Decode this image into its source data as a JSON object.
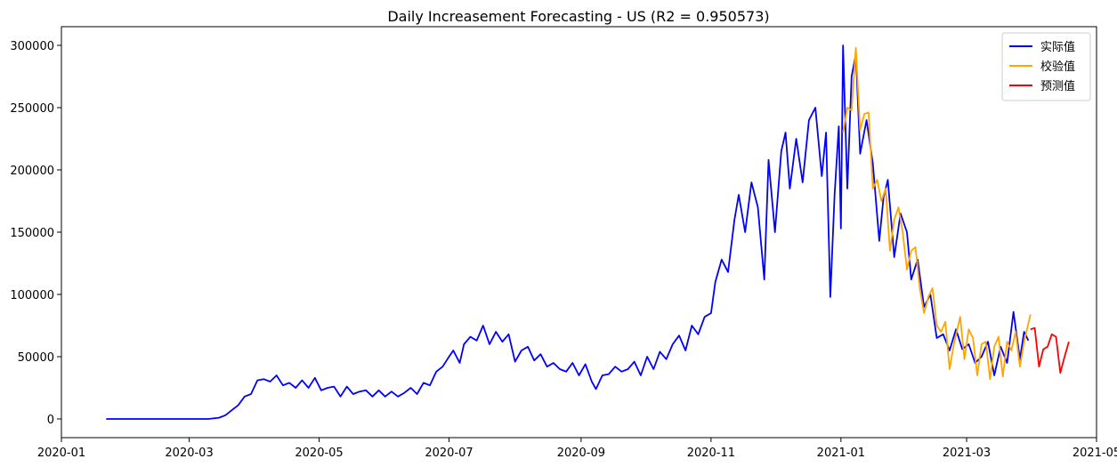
{
  "chart_data": {
    "type": "line",
    "title": "Daily Increasement Forecasting - US (R2 = 0.950573)",
    "xlabel": "",
    "ylabel": "",
    "xlim": [
      "2020-01-01",
      "2021-05-01"
    ],
    "ylim": [
      -15000,
      315000
    ],
    "grid": false,
    "legend_position": "top-right",
    "x_ticks": [
      "2020-01",
      "2020-03",
      "2020-05",
      "2020-07",
      "2020-09",
      "2020-11",
      "2021-01",
      "2021-03",
      "2021-05"
    ],
    "y_ticks": [
      0,
      50000,
      100000,
      150000,
      200000,
      250000,
      300000
    ],
    "series": [
      {
        "name": "实际值",
        "color": "#0000ff",
        "points": [
          [
            "2020-01-22",
            0
          ],
          [
            "2020-02-01",
            0
          ],
          [
            "2020-02-15",
            0
          ],
          [
            "2020-03-01",
            0
          ],
          [
            "2020-03-10",
            0
          ],
          [
            "2020-03-15",
            1000
          ],
          [
            "2020-03-18",
            3000
          ],
          [
            "2020-03-21",
            7000
          ],
          [
            "2020-03-24",
            11000
          ],
          [
            "2020-03-27",
            18000
          ],
          [
            "2020-03-30",
            20000
          ],
          [
            "2020-04-02",
            31000
          ],
          [
            "2020-04-05",
            32000
          ],
          [
            "2020-04-08",
            30000
          ],
          [
            "2020-04-11",
            35000
          ],
          [
            "2020-04-14",
            27000
          ],
          [
            "2020-04-17",
            29000
          ],
          [
            "2020-04-20",
            25000
          ],
          [
            "2020-04-23",
            31000
          ],
          [
            "2020-04-26",
            25000
          ],
          [
            "2020-04-29",
            33000
          ],
          [
            "2020-05-02",
            23000
          ],
          [
            "2020-05-05",
            25000
          ],
          [
            "2020-05-08",
            26000
          ],
          [
            "2020-05-11",
            18000
          ],
          [
            "2020-05-14",
            26000
          ],
          [
            "2020-05-17",
            20000
          ],
          [
            "2020-05-20",
            22000
          ],
          [
            "2020-05-23",
            23000
          ],
          [
            "2020-05-26",
            18000
          ],
          [
            "2020-05-29",
            23000
          ],
          [
            "2020-06-01",
            18000
          ],
          [
            "2020-06-04",
            22000
          ],
          [
            "2020-06-07",
            18000
          ],
          [
            "2020-06-10",
            21000
          ],
          [
            "2020-06-13",
            25000
          ],
          [
            "2020-06-16",
            20000
          ],
          [
            "2020-06-19",
            29000
          ],
          [
            "2020-06-22",
            27000
          ],
          [
            "2020-06-25",
            38000
          ],
          [
            "2020-06-28",
            42000
          ],
          [
            "2020-07-01",
            50000
          ],
          [
            "2020-07-03",
            55000
          ],
          [
            "2020-07-06",
            45000
          ],
          [
            "2020-07-08",
            60000
          ],
          [
            "2020-07-11",
            66000
          ],
          [
            "2020-07-14",
            63000
          ],
          [
            "2020-07-17",
            75000
          ],
          [
            "2020-07-20",
            60000
          ],
          [
            "2020-07-23",
            70000
          ],
          [
            "2020-07-26",
            62000
          ],
          [
            "2020-07-29",
            68000
          ],
          [
            "2020-08-01",
            46000
          ],
          [
            "2020-08-04",
            55000
          ],
          [
            "2020-08-07",
            58000
          ],
          [
            "2020-08-10",
            47000
          ],
          [
            "2020-08-13",
            52000
          ],
          [
            "2020-08-16",
            42000
          ],
          [
            "2020-08-19",
            45000
          ],
          [
            "2020-08-22",
            40000
          ],
          [
            "2020-08-25",
            38000
          ],
          [
            "2020-08-28",
            45000
          ],
          [
            "2020-08-31",
            35000
          ],
          [
            "2020-09-03",
            44000
          ],
          [
            "2020-09-06",
            30000
          ],
          [
            "2020-09-08",
            24000
          ],
          [
            "2020-09-11",
            35000
          ],
          [
            "2020-09-14",
            36000
          ],
          [
            "2020-09-17",
            42000
          ],
          [
            "2020-09-20",
            38000
          ],
          [
            "2020-09-23",
            40000
          ],
          [
            "2020-09-26",
            46000
          ],
          [
            "2020-09-29",
            35000
          ],
          [
            "2020-10-02",
            50000
          ],
          [
            "2020-10-05",
            40000
          ],
          [
            "2020-10-08",
            54000
          ],
          [
            "2020-10-11",
            48000
          ],
          [
            "2020-10-14",
            60000
          ],
          [
            "2020-10-17",
            67000
          ],
          [
            "2020-10-20",
            55000
          ],
          [
            "2020-10-23",
            75000
          ],
          [
            "2020-10-26",
            68000
          ],
          [
            "2020-10-29",
            82000
          ],
          [
            "2020-11-01",
            85000
          ],
          [
            "2020-11-03",
            110000
          ],
          [
            "2020-11-06",
            128000
          ],
          [
            "2020-11-09",
            118000
          ],
          [
            "2020-11-12",
            160000
          ],
          [
            "2020-11-14",
            180000
          ],
          [
            "2020-11-17",
            150000
          ],
          [
            "2020-11-20",
            190000
          ],
          [
            "2020-11-23",
            170000
          ],
          [
            "2020-11-26",
            112000
          ],
          [
            "2020-11-28",
            208000
          ],
          [
            "2020-12-01",
            150000
          ],
          [
            "2020-12-04",
            215000
          ],
          [
            "2020-12-06",
            230000
          ],
          [
            "2020-12-08",
            185000
          ],
          [
            "2020-12-11",
            225000
          ],
          [
            "2020-12-14",
            190000
          ],
          [
            "2020-12-17",
            240000
          ],
          [
            "2020-12-20",
            250000
          ],
          [
            "2020-12-23",
            195000
          ],
          [
            "2020-12-25",
            230000
          ],
          [
            "2020-12-27",
            98000
          ],
          [
            "2020-12-29",
            180000
          ],
          [
            "2020-12-31",
            235000
          ],
          [
            "2021-01-01",
            153000
          ],
          [
            "2021-01-02",
            300000
          ],
          [
            "2021-01-04",
            185000
          ],
          [
            "2021-01-06",
            275000
          ],
          [
            "2021-01-08",
            293000
          ],
          [
            "2021-01-10",
            213000
          ],
          [
            "2021-01-13",
            240000
          ],
          [
            "2021-01-16",
            205000
          ],
          [
            "2021-01-19",
            143000
          ],
          [
            "2021-01-21",
            178000
          ],
          [
            "2021-01-23",
            192000
          ],
          [
            "2021-01-26",
            130000
          ],
          [
            "2021-01-29",
            165000
          ],
          [
            "2021-02-01",
            150000
          ],
          [
            "2021-02-03",
            112000
          ],
          [
            "2021-02-06",
            128000
          ],
          [
            "2021-02-09",
            90000
          ],
          [
            "2021-02-12",
            100000
          ],
          [
            "2021-02-15",
            65000
          ],
          [
            "2021-02-18",
            68000
          ],
          [
            "2021-02-21",
            55000
          ],
          [
            "2021-02-24",
            72000
          ],
          [
            "2021-02-27",
            56000
          ],
          [
            "2021-03-02",
            60000
          ],
          [
            "2021-03-05",
            45000
          ],
          [
            "2021-03-08",
            50000
          ],
          [
            "2021-03-11",
            62000
          ],
          [
            "2021-03-14",
            35000
          ],
          [
            "2021-03-17",
            58000
          ],
          [
            "2021-03-20",
            45000
          ],
          [
            "2021-03-23",
            86000
          ],
          [
            "2021-03-26",
            48000
          ],
          [
            "2021-03-28",
            70000
          ],
          [
            "2021-03-30",
            63000
          ]
        ]
      },
      {
        "name": "校验值",
        "color": "#ffa500",
        "points": [
          [
            "2021-01-02",
            230000
          ],
          [
            "2021-01-04",
            250000
          ],
          [
            "2021-01-06",
            248000
          ],
          [
            "2021-01-08",
            298000
          ],
          [
            "2021-01-10",
            232000
          ],
          [
            "2021-01-12",
            245000
          ],
          [
            "2021-01-14",
            246000
          ],
          [
            "2021-01-16",
            185000
          ],
          [
            "2021-01-18",
            192000
          ],
          [
            "2021-01-20",
            175000
          ],
          [
            "2021-01-22",
            185000
          ],
          [
            "2021-01-24",
            135000
          ],
          [
            "2021-01-26",
            160000
          ],
          [
            "2021-01-28",
            170000
          ],
          [
            "2021-01-30",
            150000
          ],
          [
            "2021-02-01",
            120000
          ],
          [
            "2021-02-03",
            135000
          ],
          [
            "2021-02-05",
            138000
          ],
          [
            "2021-02-07",
            105000
          ],
          [
            "2021-02-09",
            85000
          ],
          [
            "2021-02-11",
            98000
          ],
          [
            "2021-02-13",
            105000
          ],
          [
            "2021-02-15",
            75000
          ],
          [
            "2021-02-17",
            70000
          ],
          [
            "2021-02-19",
            78000
          ],
          [
            "2021-02-21",
            40000
          ],
          [
            "2021-02-23",
            60000
          ],
          [
            "2021-02-26",
            82000
          ],
          [
            "2021-02-28",
            48000
          ],
          [
            "2021-03-02",
            72000
          ],
          [
            "2021-03-04",
            65000
          ],
          [
            "2021-03-06",
            35000
          ],
          [
            "2021-03-08",
            60000
          ],
          [
            "2021-03-10",
            62000
          ],
          [
            "2021-03-12",
            32000
          ],
          [
            "2021-03-14",
            58000
          ],
          [
            "2021-03-16",
            66000
          ],
          [
            "2021-03-18",
            34000
          ],
          [
            "2021-03-20",
            62000
          ],
          [
            "2021-03-22",
            55000
          ],
          [
            "2021-03-24",
            70000
          ],
          [
            "2021-03-26",
            42000
          ],
          [
            "2021-03-28",
            62000
          ],
          [
            "2021-03-31",
            84000
          ]
        ]
      },
      {
        "name": "预测值",
        "color": "#ff0000",
        "points": [
          [
            "2021-03-31",
            72000
          ],
          [
            "2021-04-02",
            73000
          ],
          [
            "2021-04-04",
            42000
          ],
          [
            "2021-04-06",
            56000
          ],
          [
            "2021-04-08",
            58000
          ],
          [
            "2021-04-10",
            68000
          ],
          [
            "2021-04-12",
            66000
          ],
          [
            "2021-04-14",
            37000
          ],
          [
            "2021-04-16",
            50000
          ],
          [
            "2021-04-18",
            62000
          ]
        ]
      }
    ]
  }
}
